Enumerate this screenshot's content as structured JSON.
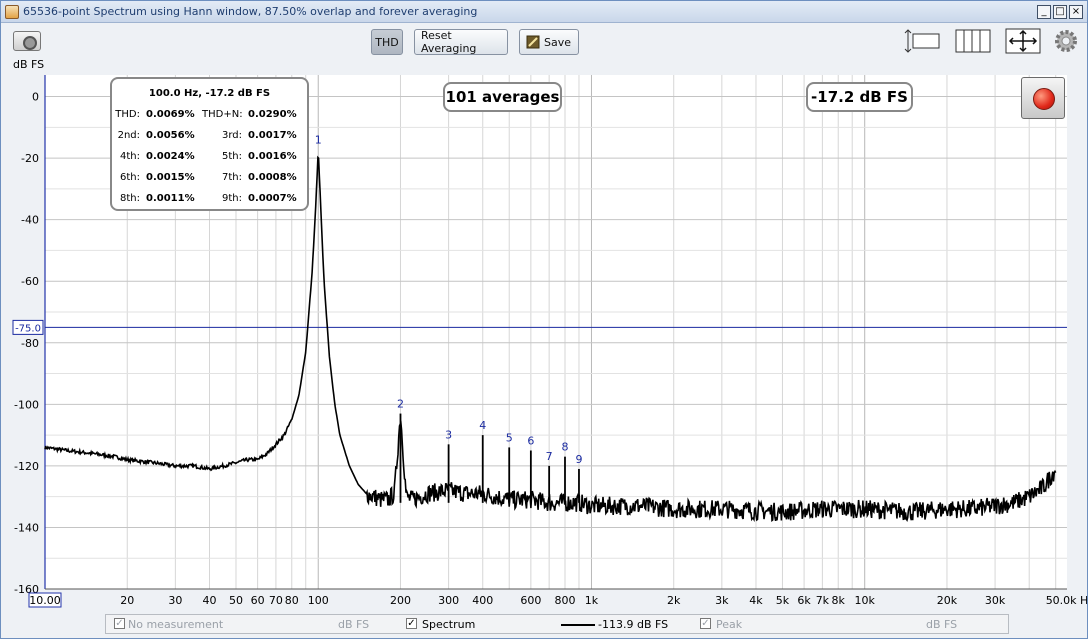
{
  "window": {
    "title": "65536-point Spectrum using Hann window, 87.50% overlap and forever averaging",
    "min_glyph": "_",
    "max_glyph": "□",
    "close_glyph": "×"
  },
  "toolbar": {
    "thd_label": "THD",
    "reset_label": "Reset Averaging",
    "save_label": "Save",
    "y_unit": "dB FS"
  },
  "harmonics_box": {
    "title": "100.0 Hz, -17.2 dB FS",
    "rows": [
      {
        "l1": "THD:",
        "v1": "0.0069%",
        "l2": "THD+N:",
        "v2": "0.0290%"
      },
      {
        "l1": "2nd:",
        "v1": "0.0056%",
        "l2": "3rd:",
        "v2": "0.0017%"
      },
      {
        "l1": "4th:",
        "v1": "0.0024%",
        "l2": "5th:",
        "v2": "0.0016%"
      },
      {
        "l1": "6th:",
        "v1": "0.0015%",
        "l2": "7th:",
        "v2": "0.0008%"
      },
      {
        "l1": "8th:",
        "v1": "0.0011%",
        "l2": "9th:",
        "v2": "0.0007%"
      }
    ]
  },
  "averages_text": "101 averages",
  "level_text": "-17.2 dB FS",
  "legend": {
    "no_measurement": "No measurement",
    "no_measurement_unit": "dB FS",
    "spectrum": "Spectrum",
    "spectrum_value": "-113.9 dB FS",
    "peak": "Peak",
    "peak_unit": "dB FS"
  },
  "chart_data": {
    "type": "line",
    "x_scale": "log",
    "xlim": [
      10,
      55000
    ],
    "ylim": [
      -160,
      7
    ],
    "y_ticks": [
      "0",
      "-20",
      "-40",
      "-60",
      "-80",
      "-100",
      "-120",
      "-140",
      "-160"
    ],
    "y_tick_values": [
      0,
      -20,
      -40,
      -60,
      -80,
      -100,
      -120,
      -140,
      -160
    ],
    "x_ticks": [
      {
        "v": 10,
        "t": "10.00"
      },
      {
        "v": 20,
        "t": "20"
      },
      {
        "v": 30,
        "t": "30"
      },
      {
        "v": 40,
        "t": "40"
      },
      {
        "v": 50,
        "t": "50"
      },
      {
        "v": 60,
        "t": "60"
      },
      {
        "v": 70,
        "t": "70"
      },
      {
        "v": 80,
        "t": "80"
      },
      {
        "v": 100,
        "t": "100"
      },
      {
        "v": 200,
        "t": "200"
      },
      {
        "v": 300,
        "t": "300"
      },
      {
        "v": 400,
        "t": "400"
      },
      {
        "v": 600,
        "t": "600"
      },
      {
        "v": 800,
        "t": "800"
      },
      {
        "v": 1000,
        "t": "1k"
      },
      {
        "v": 2000,
        "t": "2k"
      },
      {
        "v": 3000,
        "t": "3k"
      },
      {
        "v": 4000,
        "t": "4k"
      },
      {
        "v": 5000,
        "t": "5k"
      },
      {
        "v": 6000,
        "t": "6k"
      },
      {
        "v": 7000,
        "t": "7k"
      },
      {
        "v": 8000,
        "t": "8k"
      },
      {
        "v": 10000,
        "t": "10k"
      },
      {
        "v": 20000,
        "t": "20k"
      },
      {
        "v": 30000,
        "t": "30k"
      },
      {
        "v": 50000,
        "t": "50.0k Hz"
      }
    ],
    "reference_line": {
      "value": -75.0,
      "label": "-75.0"
    },
    "harmonics": [
      {
        "n": "1",
        "freq": 100,
        "level": -17.2
      },
      {
        "n": "2",
        "freq": 200,
        "level": -103
      },
      {
        "n": "3",
        "freq": 300,
        "level": -113
      },
      {
        "n": "4",
        "freq": 400,
        "level": -110
      },
      {
        "n": "5",
        "freq": 500,
        "level": -114
      },
      {
        "n": "6",
        "freq": 600,
        "level": -115
      },
      {
        "n": "7",
        "freq": 700,
        "level": -120
      },
      {
        "n": "8",
        "freq": 800,
        "level": -117
      },
      {
        "n": "9",
        "freq": 900,
        "level": -121
      }
    ],
    "series": [
      {
        "x": [
          10,
          12,
          15,
          18,
          20,
          25,
          30,
          35,
          40,
          45,
          50,
          55,
          60,
          65,
          70,
          75,
          80,
          85,
          90,
          95,
          98,
          100,
          102,
          105,
          110,
          115,
          120,
          130,
          140,
          150,
          160,
          170,
          180,
          190,
          200,
          210,
          220,
          250,
          300,
          350,
          400,
          500,
          600,
          700,
          800,
          900,
          1000,
          1200,
          1500,
          2000,
          3000,
          5000,
          7000,
          10000,
          15000,
          20000,
          25000,
          30000,
          35000,
          40000,
          45000,
          50000
        ],
        "y": [
          -114,
          -115,
          -116,
          -117,
          -118,
          -119,
          -120,
          -120,
          -121,
          -120,
          -119,
          -118,
          -118,
          -116,
          -113,
          -110,
          -105,
          -97,
          -83,
          -57,
          -35,
          -17.2,
          -35,
          -60,
          -85,
          -100,
          -110,
          -120,
          -126,
          -129,
          -130,
          -131,
          -131,
          -129,
          -103,
          -130,
          -131,
          -129,
          -128,
          -129,
          -129,
          -131,
          -131,
          -132,
          -132,
          -132,
          -133,
          -133,
          -133,
          -134,
          -134,
          -135,
          -134,
          -134,
          -135,
          -134,
          -134,
          -133,
          -132,
          -130,
          -127,
          -121
        ]
      }
    ]
  }
}
